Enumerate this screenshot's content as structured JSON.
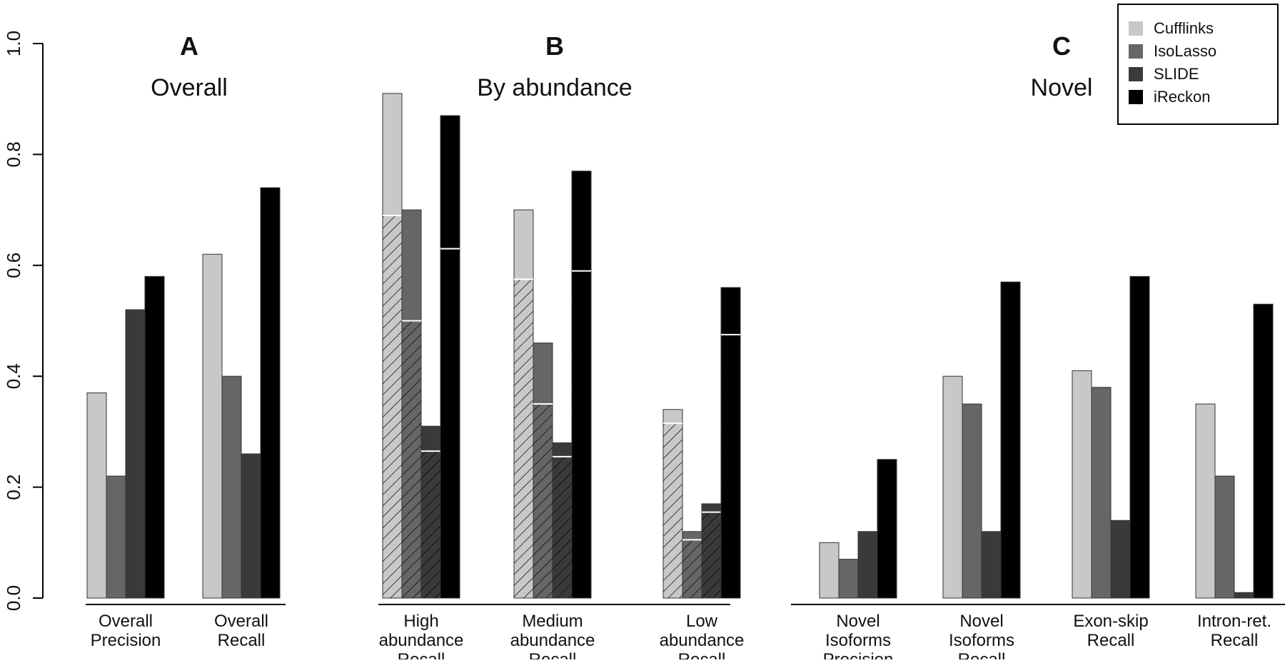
{
  "colors": {
    "cufflinks": "#c8c8c8",
    "isolasso": "#666666",
    "slide": "#3a3a3a",
    "ireckon": "#000000"
  },
  "legend": {
    "placement": "top-right",
    "items": [
      "Cufflinks",
      "IsoLasso",
      "SLIDE",
      "iReckon"
    ]
  },
  "chart_data": {
    "type": "bar",
    "ylim": [
      0,
      1.0
    ],
    "y_ticks": [
      "0.0",
      "0.2",
      "0.4",
      "0.6",
      "0.8",
      "1.0"
    ],
    "grid": false,
    "series_names": [
      "Cufflinks",
      "IsoLasso",
      "SLIDE",
      "iReckon"
    ],
    "panels": [
      {
        "letter": "A",
        "title": "Overall",
        "categories": [
          {
            "label": [
              "Overall",
              "Precision"
            ],
            "values": [
              0.37,
              0.22,
              0.52,
              0.58
            ]
          },
          {
            "label": [
              "Overall",
              "Recall"
            ],
            "values": [
              0.62,
              0.4,
              0.26,
              0.74
            ]
          }
        ]
      },
      {
        "letter": "B",
        "title": "By abundance",
        "categories": [
          {
            "label": [
              "High",
              "abundance",
              "Recall"
            ],
            "values": [
              0.91,
              0.7,
              0.31,
              0.87
            ],
            "hatched": [
              0.69,
              0.5,
              0.265,
              0.63
            ]
          },
          {
            "label": [
              "Medium",
              "abundance",
              "Recall"
            ],
            "values": [
              0.7,
              0.46,
              0.28,
              0.77
            ],
            "hatched": [
              0.575,
              0.35,
              0.255,
              0.59
            ]
          },
          {
            "label": [
              "Low",
              "abundance",
              "Recall"
            ],
            "values": [
              0.34,
              0.12,
              0.17,
              0.56
            ],
            "hatched": [
              0.315,
              0.105,
              0.155,
              0.475
            ]
          }
        ]
      },
      {
        "letter": "C",
        "title": "Novel",
        "categories": [
          {
            "label": [
              "Novel",
              "Isoforms",
              "Precision"
            ],
            "values": [
              0.1,
              0.07,
              0.12,
              0.25
            ]
          },
          {
            "label": [
              "Novel",
              "Isoforms",
              "Recall"
            ],
            "values": [
              0.4,
              0.35,
              0.12,
              0.57
            ]
          },
          {
            "label": [
              "Exon-skip",
              "Recall"
            ],
            "values": [
              0.41,
              0.38,
              0.14,
              0.58
            ]
          },
          {
            "label": [
              "Intron-ret.",
              "Recall"
            ],
            "values": [
              0.35,
              0.22,
              0.01,
              0.53
            ]
          }
        ]
      }
    ]
  }
}
